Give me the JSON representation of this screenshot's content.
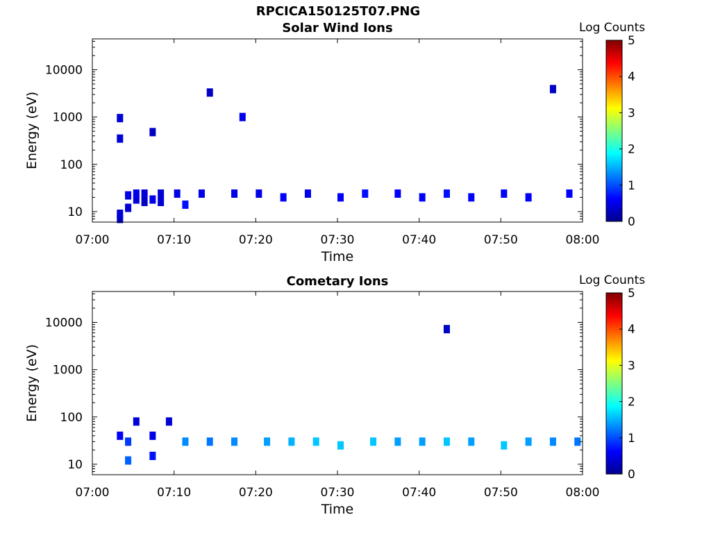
{
  "figure": {
    "suptitle": "RPCICA150125T07.PNG"
  },
  "colorbar": {
    "label": "Log Counts",
    "ticks": [
      "0",
      "1",
      "2",
      "3",
      "4",
      "5"
    ],
    "colormap": "jet"
  },
  "chart_data": [
    {
      "type": "heatmap",
      "title": "Solar Wind Ions",
      "xlabel": "Time",
      "ylabel": "Energy (eV)",
      "yscale": "log",
      "ylim": [
        6,
        45000
      ],
      "xlim": [
        "07:00",
        "08:00"
      ],
      "xticks": [
        "07:00",
        "07:10",
        "07:20",
        "07:30",
        "07:40",
        "07:50",
        "08:00"
      ],
      "yticks": [
        "10",
        "100",
        "1000",
        "10000"
      ],
      "clim": [
        0,
        5
      ],
      "cells": [
        {
          "t": "07:03",
          "e": 7,
          "v": 0.3
        },
        {
          "t": "07:03",
          "e": 9,
          "v": 0.4
        },
        {
          "t": "07:04",
          "e": 12,
          "v": 0.4
        },
        {
          "t": "07:04",
          "e": 22,
          "v": 0.5
        },
        {
          "t": "07:03",
          "e": 350,
          "v": 0.4
        },
        {
          "t": "07:03",
          "e": 950,
          "v": 0.4
        },
        {
          "t": "07:05",
          "e": 18,
          "v": 0.4
        },
        {
          "t": "07:05",
          "e": 24,
          "v": 0.5
        },
        {
          "t": "07:06",
          "e": 16,
          "v": 0.3
        },
        {
          "t": "07:06",
          "e": 24,
          "v": 0.4
        },
        {
          "t": "07:07",
          "e": 480,
          "v": 0.3
        },
        {
          "t": "07:07",
          "e": 18,
          "v": 0.5
        },
        {
          "t": "07:08",
          "e": 24,
          "v": 0.4
        },
        {
          "t": "07:08",
          "e": 16,
          "v": 0.4
        },
        {
          "t": "07:10",
          "e": 24,
          "v": 0.5
        },
        {
          "t": "07:11",
          "e": 14,
          "v": 0.7
        },
        {
          "t": "07:13",
          "e": 24,
          "v": 0.5
        },
        {
          "t": "07:14",
          "e": 3300,
          "v": 0.3
        },
        {
          "t": "07:17",
          "e": 24,
          "v": 0.5
        },
        {
          "t": "07:18",
          "e": 1000,
          "v": 0.5
        },
        {
          "t": "07:20",
          "e": 24,
          "v": 0.5
        },
        {
          "t": "07:23",
          "e": 20,
          "v": 0.6
        },
        {
          "t": "07:26",
          "e": 24,
          "v": 0.5
        },
        {
          "t": "07:30",
          "e": 20,
          "v": 0.6
        },
        {
          "t": "07:33",
          "e": 24,
          "v": 0.7
        },
        {
          "t": "07:37",
          "e": 24,
          "v": 0.6
        },
        {
          "t": "07:40",
          "e": 20,
          "v": 0.6
        },
        {
          "t": "07:43",
          "e": 24,
          "v": 0.7
        },
        {
          "t": "07:46",
          "e": 20,
          "v": 0.6
        },
        {
          "t": "07:50",
          "e": 24,
          "v": 0.6
        },
        {
          "t": "07:53",
          "e": 20,
          "v": 0.6
        },
        {
          "t": "07:56",
          "e": 3900,
          "v": 0.3
        },
        {
          "t": "07:58",
          "e": 24,
          "v": 0.6
        }
      ]
    },
    {
      "type": "heatmap",
      "title": "Cometary Ions",
      "xlabel": "Time",
      "ylabel": "Energy (eV)",
      "yscale": "log",
      "ylim": [
        6,
        45000
      ],
      "xlim": [
        "07:00",
        "08:00"
      ],
      "xticks": [
        "07:00",
        "07:10",
        "07:20",
        "07:30",
        "07:40",
        "07:50",
        "08:00"
      ],
      "yticks": [
        "10",
        "100",
        "1000",
        "10000"
      ],
      "clim": [
        0,
        5
      ],
      "cells": [
        {
          "t": "07:03",
          "e": 40,
          "v": 0.6
        },
        {
          "t": "07:04",
          "e": 12,
          "v": 1.1
        },
        {
          "t": "07:04",
          "e": 30,
          "v": 0.9
        },
        {
          "t": "07:05",
          "e": 80,
          "v": 0.4
        },
        {
          "t": "07:07",
          "e": 40,
          "v": 0.5
        },
        {
          "t": "07:07",
          "e": 15,
          "v": 0.7
        },
        {
          "t": "07:09",
          "e": 80,
          "v": 0.4
        },
        {
          "t": "07:11",
          "e": 30,
          "v": 1.3
        },
        {
          "t": "07:14",
          "e": 30,
          "v": 1.2
        },
        {
          "t": "07:17",
          "e": 30,
          "v": 1.3
        },
        {
          "t": "07:21",
          "e": 30,
          "v": 1.4
        },
        {
          "t": "07:24",
          "e": 30,
          "v": 1.5
        },
        {
          "t": "07:27",
          "e": 30,
          "v": 1.6
        },
        {
          "t": "07:30",
          "e": 25,
          "v": 1.6
        },
        {
          "t": "07:34",
          "e": 30,
          "v": 1.6
        },
        {
          "t": "07:37",
          "e": 30,
          "v": 1.4
        },
        {
          "t": "07:40",
          "e": 30,
          "v": 1.4
        },
        {
          "t": "07:43",
          "e": 30,
          "v": 1.6
        },
        {
          "t": "07:43",
          "e": 7200,
          "v": 0.3
        },
        {
          "t": "07:46",
          "e": 30,
          "v": 1.4
        },
        {
          "t": "07:50",
          "e": 25,
          "v": 1.6
        },
        {
          "t": "07:53",
          "e": 30,
          "v": 1.4
        },
        {
          "t": "07:56",
          "e": 30,
          "v": 1.3
        },
        {
          "t": "07:59",
          "e": 30,
          "v": 1.2
        }
      ]
    }
  ]
}
